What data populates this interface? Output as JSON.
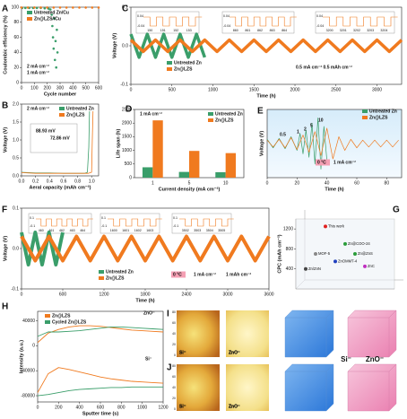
{
  "chart_data": [
    {
      "label": "A",
      "type": "scatter",
      "xlabel": "Cycle number",
      "ylabel": "Coulombic efficiency (%)",
      "xlim": [
        0,
        600
      ],
      "xticks": [
        0,
        100,
        200,
        300,
        400,
        500,
        600
      ],
      "ylim": [
        0,
        100
      ],
      "yticks": [
        0,
        20,
        40,
        60,
        80,
        100
      ],
      "legend": "upper left",
      "annotations": [
        "2 mA cm⁻²",
        "1 mA cm⁻²"
      ],
      "series": [
        {
          "name": "Untreated Zn/Cu",
          "color": "#3a9e6a",
          "x": [
            5,
            30,
            60,
            90,
            120,
            150,
            180,
            210,
            225,
            235,
            240,
            245,
            250,
            255,
            260,
            265,
            270,
            275,
            280
          ],
          "values": [
            99,
            99,
            99,
            99,
            99,
            99,
            98.5,
            98,
            97,
            90,
            75,
            60,
            45,
            85,
            30,
            55,
            20,
            70,
            40
          ]
        },
        {
          "name": "Zn@LZS//Cu",
          "color": "#f07a1f",
          "x": [
            0,
            50,
            100,
            150,
            200,
            250,
            300,
            350,
            400,
            450,
            500,
            550,
            600
          ],
          "values": [
            99.5,
            99.5,
            99.5,
            99.5,
            99.5,
            99.5,
            99.5,
            99.5,
            99.5,
            99.5,
            99.5,
            99.5,
            99.5
          ]
        }
      ]
    },
    {
      "label": "C",
      "type": "line",
      "xlabel": "Time (h)",
      "ylabel": "Voltage (V)",
      "xlim": [
        0,
        3300
      ],
      "xticks": [
        0,
        500,
        1000,
        1500,
        2000,
        2500,
        3000
      ],
      "ylim": [
        -0.1,
        0.1
      ],
      "yticks": [
        -0.1,
        {
          "value": 0,
          "label": "0.0"
        },
        0.1
      ],
      "legend": "lower left",
      "annotations": [
        "0.5 mA cm⁻²  0.5 mAh cm⁻²"
      ],
      "insets": [
        {
          "xticks": [
            150,
            151,
            152,
            153
          ],
          "yticks": [
            0.04,
            -0.04
          ]
        },
        {
          "xticks": [
            860,
            861,
            862,
            863,
            864
          ],
          "yticks": [
            0.04,
            -0.04
          ]
        },
        {
          "xticks": [
            3200,
            3201,
            3202,
            3203,
            3204
          ],
          "yticks": [
            0.04,
            -0.04
          ]
        }
      ],
      "series": [
        {
          "name": "Untreated Zn",
          "color": "#3a9e6a",
          "x": [
            0,
            100,
            200,
            300,
            400,
            500,
            600,
            700,
            800,
            900
          ],
          "values": [
            0.03,
            -0.03,
            0.03,
            -0.03,
            0.03,
            -0.03,
            0.03,
            -0.03,
            0.03,
            -0.03
          ]
        },
        {
          "name": "Zn@LZS",
          "color": "#f07a1f",
          "x": [
            0,
            150,
            300,
            450,
            600,
            750,
            900,
            1050,
            1200,
            1350,
            1500,
            1650,
            1800,
            1950,
            2100,
            2250,
            2400,
            2550,
            2700,
            2850,
            3000,
            3150,
            3300
          ],
          "values": [
            0.015,
            -0.015,
            0.015,
            -0.015,
            0.015,
            -0.015,
            0.015,
            -0.015,
            0.015,
            -0.015,
            0.015,
            -0.015,
            0.015,
            -0.015,
            0.015,
            -0.015,
            0.015,
            -0.015,
            0.015,
            -0.015,
            0.015,
            -0.015,
            0.015
          ]
        }
      ]
    },
    {
      "label": "B",
      "type": "line",
      "xlabel": "Aeral capacity (mAh cm⁻²)",
      "ylabel": "Voltage (V)",
      "xlim": [
        0,
        1.1
      ],
      "xticks": [
        {
          "value": 0,
          "label": "0.0"
        },
        0.2,
        0.4,
        0.6,
        0.8,
        {
          "value": 1,
          "label": "1.0"
        }
      ],
      "ylim": [
        0,
        2
      ],
      "yticks": [
        {
          "value": 0,
          "label": "0.0"
        },
        0.5,
        {
          "value": 1,
          "label": "1.0"
        },
        1.5,
        {
          "value": 2,
          "label": "2.0"
        }
      ],
      "legend": "upper right",
      "annotations": [
        "2 mA cm⁻²",
        "88.93 mV",
        "72.86 mV"
      ],
      "series": [
        {
          "name": "Untreated Zn",
          "color": "#3a9e6a",
          "x": [
            0,
            0.2,
            0.4,
            0.6,
            0.8,
            0.9,
            0.94,
            0.96,
            0.97
          ],
          "values": [
            0.1,
            0.08,
            0.08,
            0.07,
            0.07,
            0.07,
            0.1,
            0.8,
            1.8
          ]
        },
        {
          "name": "Zn@LZS",
          "color": "#f07a1f",
          "x": [
            0,
            0.2,
            0.4,
            0.6,
            0.8,
            0.95,
            1.0,
            1.01,
            1.02
          ],
          "values": [
            0.09,
            0.07,
            0.07,
            0.07,
            0.07,
            0.07,
            0.1,
            1.0,
            1.8
          ]
        }
      ]
    },
    {
      "label": "D",
      "type": "bar",
      "xlabel": "Current density (mA cm⁻²)",
      "ylabel": "Life span (h)",
      "categories": [
        "1",
        "5",
        "10"
      ],
      "ylim": [
        0,
        2500
      ],
      "yticks": [
        0,
        500,
        1000,
        1500,
        2000,
        2500
      ],
      "legend": "upper right",
      "annotations": [
        "1 mA cm⁻²"
      ],
      "series": [
        {
          "name": "Untreated Zn",
          "color": "#3a9e6a",
          "values": [
            380,
            210,
            200
          ]
        },
        {
          "name": "Zn@LZS",
          "color": "#f07a1f",
          "values": [
            2100,
            980,
            900
          ]
        }
      ]
    },
    {
      "label": "E",
      "type": "line",
      "xlabel": "Time (h)",
      "ylabel": "Voltage (V)",
      "xlim": [
        0,
        90
      ],
      "xticks": [
        0,
        20,
        40,
        60,
        80
      ],
      "ylim": [
        -0.4,
        0.4
      ],
      "legend": "upper right",
      "annotations": [
        "0.5",
        "1",
        "2",
        "5",
        "10",
        "0 °C",
        "1 mA cm⁻²"
      ],
      "series": [
        {
          "name": "Untreated Zn",
          "color": "#3a9e6a",
          "x": [
            0,
            4,
            8,
            12,
            16,
            20,
            22,
            24,
            26,
            28,
            30,
            32,
            34,
            36,
            38,
            40
          ],
          "values": [
            0.05,
            -0.05,
            0.06,
            -0.06,
            0.08,
            -0.08,
            0.12,
            -0.12,
            0.16,
            -0.16,
            0.24,
            -0.24,
            0.3,
            -0.3,
            0.2,
            -0.2
          ]
        },
        {
          "name": "Zn@LZS",
          "color": "#f07a1f",
          "x": [
            0,
            4,
            8,
            12,
            16,
            20,
            24,
            28,
            32,
            36,
            40,
            44,
            48,
            52,
            56,
            60,
            64,
            68,
            72,
            76,
            80,
            84,
            88
          ],
          "values": [
            0.04,
            -0.04,
            0.05,
            -0.05,
            0.07,
            -0.07,
            0.1,
            -0.1,
            0.14,
            -0.14,
            0.18,
            -0.18,
            0.08,
            -0.08,
            0.05,
            -0.05,
            0.04,
            -0.04,
            0.04,
            -0.04,
            0.04,
            -0.04,
            0.04
          ]
        }
      ]
    },
    {
      "label": "F",
      "type": "line",
      "xlabel": "Time (h)",
      "ylabel": "Voltage (V)",
      "xlim": [
        0,
        3600
      ],
      "xticks": [
        0,
        600,
        1200,
        1800,
        2400,
        3000,
        3600
      ],
      "ylim": [
        -0.1,
        0.1
      ],
      "yticks": [
        -0.1,
        {
          "value": 0,
          "label": "0.0"
        },
        0.1
      ],
      "legend": "lower center",
      "annotations": [
        "0 °C",
        "1 mA cm⁻²",
        "1 mAh cm⁻²"
      ],
      "insets": [
        {
          "xticks": [
            460,
            461,
            462,
            463,
            464
          ],
          "yticks": [
            0.1,
            -0.1
          ]
        },
        {
          "xticks": [
            1600,
            1601,
            1602,
            1603
          ],
          "yticks": [
            0.1,
            -0.1
          ]
        },
        {
          "xticks": [
            3502,
            3503,
            3504,
            3505
          ],
          "yticks": [
            0.1,
            -0.1
          ]
        }
      ],
      "series": [
        {
          "name": "Untreated Zn",
          "color": "#3a9e6a",
          "x": [
            0,
            100,
            200,
            300,
            400,
            500,
            600
          ],
          "values": [
            0.04,
            -0.04,
            0.04,
            -0.04,
            0.04,
            -0.04,
            0.04
          ]
        },
        {
          "name": "Zn@LZS",
          "color": "#f07a1f",
          "x": [
            0,
            200,
            400,
            600,
            800,
            1000,
            1200,
            1400,
            1600,
            1800,
            2000,
            2200,
            2400,
            2600,
            2800,
            3000,
            3200,
            3400,
            3600
          ],
          "values": [
            0.03,
            -0.03,
            0.03,
            -0.03,
            0.03,
            -0.03,
            0.03,
            -0.03,
            0.03,
            -0.03,
            0.03,
            -0.03,
            0.03,
            -0.03,
            0.03,
            -0.03,
            0.03,
            -0.03,
            0.03
          ]
        }
      ]
    },
    {
      "label": "G",
      "type": "scatter",
      "ylabel": "CPC (mAh cm⁻²)",
      "xlim": [
        0,
        10
      ],
      "ylim": [
        0,
        1400
      ],
      "yticks": [
        400,
        800,
        1200
      ],
      "point_labels": [
        "This work",
        "Zn@COO-24",
        "MOF-5",
        "Zn@ZnS",
        "ZnOMMT-4",
        "ZnC",
        "Zn/ZnN"
      ],
      "series": [
        {
          "x": [
            3,
            5,
            2,
            6,
            4,
            7,
            1
          ],
          "values": [
            1250,
            900,
            700,
            700,
            550,
            450,
            400
          ],
          "colors": [
            "#e02020",
            "#2a9d3a",
            "#888888",
            "#2a9d3a",
            "#2040c0",
            "#c030c0",
            "#444444"
          ]
        }
      ]
    },
    {
      "label": "H",
      "type": "line",
      "xlabel": "Sputter time (s)",
      "ylabel": "Intensity (a.u.)",
      "xlim": [
        0,
        1200
      ],
      "xticks": [
        0,
        200,
        400,
        600,
        800,
        1000,
        1200
      ],
      "ylim": [
        -90000,
        55000
      ],
      "yticks": [
        -80000,
        -40000,
        0,
        40000
      ],
      "legend": "upper left",
      "annotations": [
        "ZnO⁻",
        "Si⁻"
      ],
      "series": [
        {
          "name": "Zn@LZS",
          "color": "#f07a1f",
          "x": [
            0,
            100,
            200,
            300,
            400,
            500,
            600,
            700,
            800,
            900,
            1000,
            1100,
            1200
          ],
          "values": [
            5000,
            20000,
            26000,
            30000,
            32000,
            32000,
            31000,
            29000,
            27000,
            25000,
            24000,
            23000,
            22000
          ]
        },
        {
          "name": "Cycled Zn@LZS",
          "color": "#3a9e6a",
          "x": [
            0,
            100,
            200,
            300,
            400,
            500,
            600,
            700,
            800,
            900,
            1000,
            1100,
            1200
          ],
          "values": [
            15000,
            22000,
            22000,
            23000,
            24000,
            26000,
            28000,
            30000,
            30000,
            29000,
            28000,
            27000,
            26000
          ]
        },
        {
          "color": "#f07a1f",
          "x": [
            0,
            100,
            200,
            300,
            400,
            500,
            600,
            700,
            800,
            900,
            1000,
            1100,
            1200
          ],
          "values": [
            -75000,
            -45000,
            -35000,
            -38000,
            -42000,
            -46000,
            -50000,
            -53000,
            -55000,
            -57000,
            -58000,
            -59000,
            -60000
          ]
        },
        {
          "color": "#3a9e6a",
          "x": [
            0,
            100,
            200,
            300,
            400,
            500,
            600,
            700,
            800,
            900,
            1000,
            1100,
            1200
          ],
          "values": [
            -80000,
            -78000,
            -75000,
            -72000,
            -70000,
            -69000,
            -68000,
            -67000,
            -67000,
            -66000,
            -66000,
            -66000,
            -66000
          ]
        }
      ]
    }
  ],
  "images": {
    "rows": [
      {
        "label": "I",
        "maps": [
          "Si⁻",
          "ZnO⁻"
        ]
      },
      {
        "label": "J",
        "maps": [
          "Si⁻",
          "ZnO⁻"
        ]
      }
    ],
    "cubes": [
      "Si⁻",
      "ZnO⁻"
    ],
    "ticks": [
      0,
      20,
      40,
      60,
      80
    ]
  }
}
